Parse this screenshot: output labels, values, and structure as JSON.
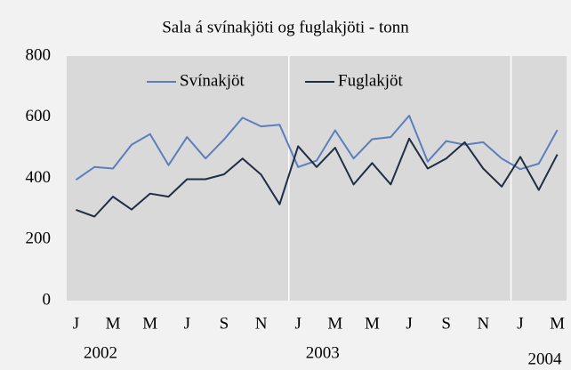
{
  "chart_data": {
    "type": "line",
    "title": "Sala á svínakjöti og fuglakjöti - tonn",
    "categories": [
      "J",
      null,
      "M",
      null,
      "M",
      null,
      "J",
      null,
      "S",
      null,
      "N",
      null,
      "J",
      null,
      "M",
      null,
      "M",
      null,
      "J",
      null,
      "S",
      null,
      "N",
      null,
      "J",
      null,
      "M"
    ],
    "years": [
      "2002",
      "2003",
      "2004"
    ],
    "series": [
      {
        "name": "Svínakjöt",
        "color": "#5b7fbd",
        "values": [
          395,
          437,
          432,
          510,
          545,
          443,
          535,
          465,
          527,
          598,
          570,
          575,
          437,
          458,
          557,
          465,
          528,
          535,
          605,
          455,
          522,
          510,
          518,
          465,
          430,
          448,
          558
        ]
      },
      {
        "name": "Fuglakjöt",
        "color": "#1f2d45",
        "values": [
          297,
          275,
          340,
          298,
          350,
          340,
          397,
          397,
          413,
          465,
          412,
          315,
          505,
          437,
          500,
          380,
          450,
          380,
          530,
          432,
          465,
          518,
          432,
          373,
          470,
          362,
          478
        ]
      }
    ],
    "ylim": [
      0,
      800
    ],
    "yticks": [
      0,
      200,
      400,
      600,
      800
    ],
    "grid": false,
    "legend": "top"
  }
}
